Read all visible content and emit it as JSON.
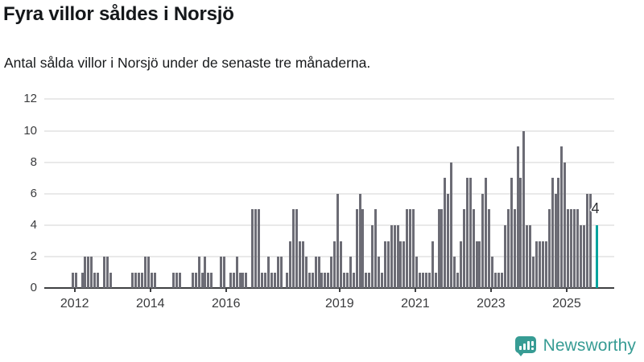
{
  "header": {
    "title": "Fyra villor såldes i Norsjö",
    "subtitle": "Antal sålda villor i Norsjö under de senaste tre månaderna."
  },
  "chart_data": {
    "type": "bar",
    "title": "Fyra villor såldes i Norsjö",
    "subtitle": "Antal sålda villor i Norsjö under de senaste tre månaderna.",
    "ylabel": "",
    "xlabel": "",
    "ylim": [
      0,
      12
    ],
    "grid": "horizontal",
    "y_ticks": [
      0,
      2,
      4,
      6,
      8,
      10,
      12
    ],
    "x_ticks": [
      {
        "label": "2012",
        "year": 2012
      },
      {
        "label": "2014",
        "year": 2014
      },
      {
        "label": "2016",
        "year": 2016
      },
      {
        "label": "2019",
        "year": 2019
      },
      {
        "label": "2021",
        "year": 2021
      },
      {
        "label": "2023",
        "year": 2023
      },
      {
        "label": "2025",
        "year": 2025
      }
    ],
    "series_start": "2011-12",
    "series_frequency": "monthly",
    "monthly_values": [
      1,
      1,
      0,
      1,
      2,
      2,
      2,
      1,
      1,
      0,
      2,
      2,
      1,
      0,
      0,
      0,
      0,
      0,
      0,
      1,
      1,
      1,
      1,
      2,
      2,
      1,
      1,
      0,
      0,
      0,
      0,
      0,
      1,
      1,
      1,
      0,
      0,
      0,
      1,
      1,
      2,
      1,
      2,
      1,
      1,
      0,
      0,
      2,
      2,
      0,
      1,
      1,
      2,
      1,
      1,
      1,
      0,
      5,
      5,
      5,
      1,
      1,
      2,
      1,
      1,
      2,
      2,
      0,
      1,
      3,
      5,
      5,
      3,
      3,
      2,
      1,
      1,
      2,
      2,
      1,
      1,
      1,
      2,
      3,
      6,
      3,
      1,
      1,
      2,
      1,
      5,
      6,
      5,
      1,
      1,
      4,
      5,
      2,
      1,
      3,
      3,
      4,
      4,
      4,
      3,
      3,
      5,
      5,
      5,
      2,
      1,
      1,
      1,
      1,
      3,
      1,
      5,
      5,
      7,
      6,
      8,
      2,
      1,
      3,
      5,
      7,
      7,
      5,
      3,
      3,
      6,
      7,
      5,
      2,
      1,
      1,
      1,
      4,
      5,
      7,
      5,
      9,
      7,
      10,
      4,
      4,
      2,
      3,
      3,
      3,
      3,
      5,
      7,
      6,
      7,
      9,
      8,
      5,
      5,
      5,
      5,
      4,
      4,
      6,
      6,
      0,
      4
    ],
    "highlight": {
      "position": "last",
      "value": 4,
      "label": "4",
      "color": "#00a49e"
    },
    "bar_color": "#6c6c75",
    "colors": {
      "bar": "#6c6c75",
      "highlight": "#00a49e",
      "gridline": "#e9e9e9",
      "axis": "#3f4042",
      "axis_text": "#3a3b3d"
    }
  },
  "annotation": {
    "last_value_label": "4"
  },
  "footer": {
    "brand": "Newsworthy",
    "brand_color": "#379c94"
  }
}
